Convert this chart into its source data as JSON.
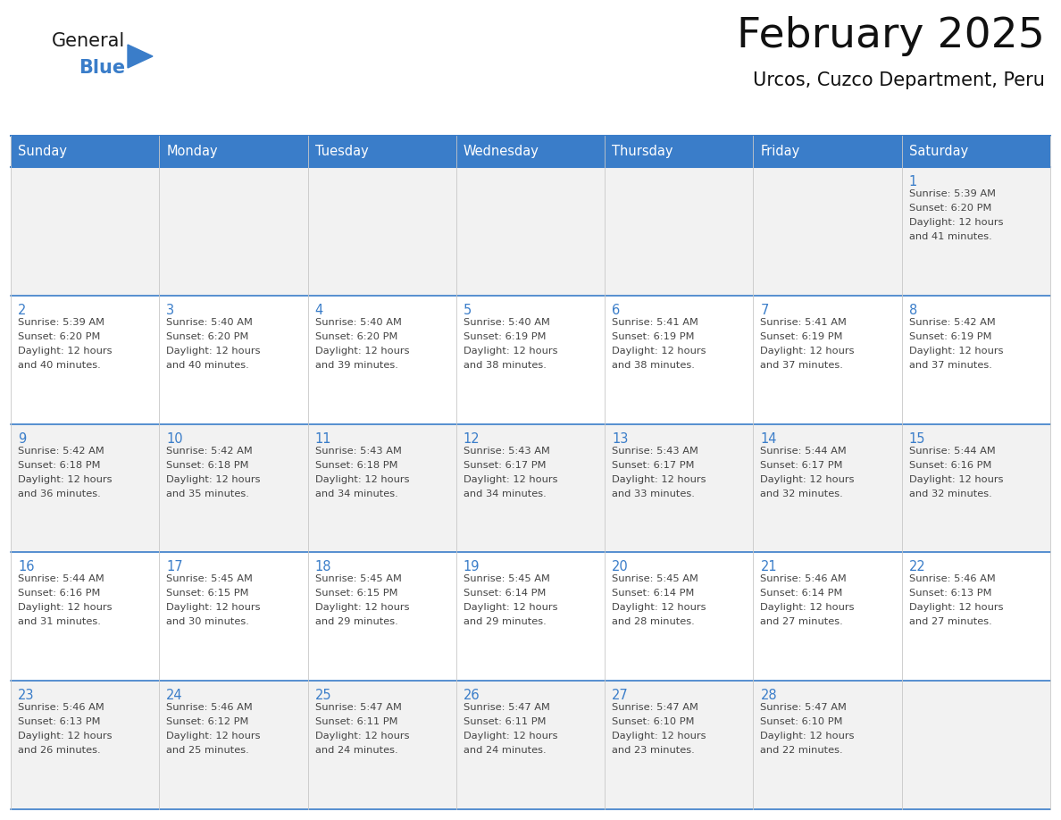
{
  "title": "February 2025",
  "subtitle": "Urcos, Cuzco Department, Peru",
  "days_of_week": [
    "Sunday",
    "Monday",
    "Tuesday",
    "Wednesday",
    "Thursday",
    "Friday",
    "Saturday"
  ],
  "header_bg": "#3A7DC9",
  "header_text_color": "#FFFFFF",
  "cell_bg_odd": "#F2F2F2",
  "cell_bg_even": "#FFFFFF",
  "cell_border_color": "#3A7DC9",
  "inner_border_color": "#C8C8C8",
  "day_num_color": "#3A7DC9",
  "text_color": "#444444",
  "title_color": "#111111",
  "subtitle_color": "#111111",
  "calendar_data": [
    {
      "day": 1,
      "col": 6,
      "row": 0,
      "sunrise": "5:39 AM",
      "sunset": "6:20 PM",
      "daylight": "12 hours",
      "daylight2": "and 41 minutes."
    },
    {
      "day": 2,
      "col": 0,
      "row": 1,
      "sunrise": "5:39 AM",
      "sunset": "6:20 PM",
      "daylight": "12 hours",
      "daylight2": "and 40 minutes."
    },
    {
      "day": 3,
      "col": 1,
      "row": 1,
      "sunrise": "5:40 AM",
      "sunset": "6:20 PM",
      "daylight": "12 hours",
      "daylight2": "and 40 minutes."
    },
    {
      "day": 4,
      "col": 2,
      "row": 1,
      "sunrise": "5:40 AM",
      "sunset": "6:20 PM",
      "daylight": "12 hours",
      "daylight2": "and 39 minutes."
    },
    {
      "day": 5,
      "col": 3,
      "row": 1,
      "sunrise": "5:40 AM",
      "sunset": "6:19 PM",
      "daylight": "12 hours",
      "daylight2": "and 38 minutes."
    },
    {
      "day": 6,
      "col": 4,
      "row": 1,
      "sunrise": "5:41 AM",
      "sunset": "6:19 PM",
      "daylight": "12 hours",
      "daylight2": "and 38 minutes."
    },
    {
      "day": 7,
      "col": 5,
      "row": 1,
      "sunrise": "5:41 AM",
      "sunset": "6:19 PM",
      "daylight": "12 hours",
      "daylight2": "and 37 minutes."
    },
    {
      "day": 8,
      "col": 6,
      "row": 1,
      "sunrise": "5:42 AM",
      "sunset": "6:19 PM",
      "daylight": "12 hours",
      "daylight2": "and 37 minutes."
    },
    {
      "day": 9,
      "col": 0,
      "row": 2,
      "sunrise": "5:42 AM",
      "sunset": "6:18 PM",
      "daylight": "12 hours",
      "daylight2": "and 36 minutes."
    },
    {
      "day": 10,
      "col": 1,
      "row": 2,
      "sunrise": "5:42 AM",
      "sunset": "6:18 PM",
      "daylight": "12 hours",
      "daylight2": "and 35 minutes."
    },
    {
      "day": 11,
      "col": 2,
      "row": 2,
      "sunrise": "5:43 AM",
      "sunset": "6:18 PM",
      "daylight": "12 hours",
      "daylight2": "and 34 minutes."
    },
    {
      "day": 12,
      "col": 3,
      "row": 2,
      "sunrise": "5:43 AM",
      "sunset": "6:17 PM",
      "daylight": "12 hours",
      "daylight2": "and 34 minutes."
    },
    {
      "day": 13,
      "col": 4,
      "row": 2,
      "sunrise": "5:43 AM",
      "sunset": "6:17 PM",
      "daylight": "12 hours",
      "daylight2": "and 33 minutes."
    },
    {
      "day": 14,
      "col": 5,
      "row": 2,
      "sunrise": "5:44 AM",
      "sunset": "6:17 PM",
      "daylight": "12 hours",
      "daylight2": "and 32 minutes."
    },
    {
      "day": 15,
      "col": 6,
      "row": 2,
      "sunrise": "5:44 AM",
      "sunset": "6:16 PM",
      "daylight": "12 hours",
      "daylight2": "and 32 minutes."
    },
    {
      "day": 16,
      "col": 0,
      "row": 3,
      "sunrise": "5:44 AM",
      "sunset": "6:16 PM",
      "daylight": "12 hours",
      "daylight2": "and 31 minutes."
    },
    {
      "day": 17,
      "col": 1,
      "row": 3,
      "sunrise": "5:45 AM",
      "sunset": "6:15 PM",
      "daylight": "12 hours",
      "daylight2": "and 30 minutes."
    },
    {
      "day": 18,
      "col": 2,
      "row": 3,
      "sunrise": "5:45 AM",
      "sunset": "6:15 PM",
      "daylight": "12 hours",
      "daylight2": "and 29 minutes."
    },
    {
      "day": 19,
      "col": 3,
      "row": 3,
      "sunrise": "5:45 AM",
      "sunset": "6:14 PM",
      "daylight": "12 hours",
      "daylight2": "and 29 minutes."
    },
    {
      "day": 20,
      "col": 4,
      "row": 3,
      "sunrise": "5:45 AM",
      "sunset": "6:14 PM",
      "daylight": "12 hours",
      "daylight2": "and 28 minutes."
    },
    {
      "day": 21,
      "col": 5,
      "row": 3,
      "sunrise": "5:46 AM",
      "sunset": "6:14 PM",
      "daylight": "12 hours",
      "daylight2": "and 27 minutes."
    },
    {
      "day": 22,
      "col": 6,
      "row": 3,
      "sunrise": "5:46 AM",
      "sunset": "6:13 PM",
      "daylight": "12 hours",
      "daylight2": "and 27 minutes."
    },
    {
      "day": 23,
      "col": 0,
      "row": 4,
      "sunrise": "5:46 AM",
      "sunset": "6:13 PM",
      "daylight": "12 hours",
      "daylight2": "and 26 minutes."
    },
    {
      "day": 24,
      "col": 1,
      "row": 4,
      "sunrise": "5:46 AM",
      "sunset": "6:12 PM",
      "daylight": "12 hours",
      "daylight2": "and 25 minutes."
    },
    {
      "day": 25,
      "col": 2,
      "row": 4,
      "sunrise": "5:47 AM",
      "sunset": "6:11 PM",
      "daylight": "12 hours",
      "daylight2": "and 24 minutes."
    },
    {
      "day": 26,
      "col": 3,
      "row": 4,
      "sunrise": "5:47 AM",
      "sunset": "6:11 PM",
      "daylight": "12 hours",
      "daylight2": "and 24 minutes."
    },
    {
      "day": 27,
      "col": 4,
      "row": 4,
      "sunrise": "5:47 AM",
      "sunset": "6:10 PM",
      "daylight": "12 hours",
      "daylight2": "and 23 minutes."
    },
    {
      "day": 28,
      "col": 5,
      "row": 4,
      "sunrise": "5:47 AM",
      "sunset": "6:10 PM",
      "daylight": "12 hours",
      "daylight2": "and 22 minutes."
    }
  ],
  "num_rows": 5,
  "logo_general_color": "#1A1A1A",
  "logo_blue_color": "#3A7DC9",
  "logo_triangle_color": "#3A7DC9"
}
